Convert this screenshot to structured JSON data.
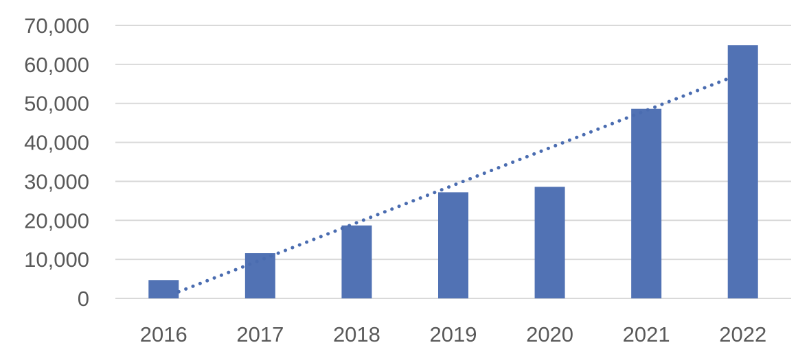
{
  "chart_data": {
    "type": "bar",
    "title": "",
    "xlabel": "",
    "ylabel": "",
    "categories": [
      "2016",
      "2017",
      "2018",
      "2019",
      "2020",
      "2021",
      "2022"
    ],
    "values": [
      4700,
      11600,
      18700,
      27200,
      28600,
      48600,
      64900
    ],
    "ylim": [
      0,
      70000
    ],
    "yticks": [
      0,
      10000,
      20000,
      30000,
      40000,
      50000,
      60000,
      70000
    ],
    "ytick_labels": [
      "0",
      "10,000",
      "20,000",
      "30,000",
      "40,000",
      "50,000",
      "60,000",
      "70,000"
    ],
    "grid": true,
    "legend": "none",
    "trendline": {
      "type": "linear",
      "style": "dotted",
      "start": 1700,
      "end": 56300
    },
    "colors": {
      "bar": "#5172b4",
      "trendline": "#4a6cb0",
      "gridline": "#d9d9d9",
      "tick_text": "#595959"
    }
  }
}
